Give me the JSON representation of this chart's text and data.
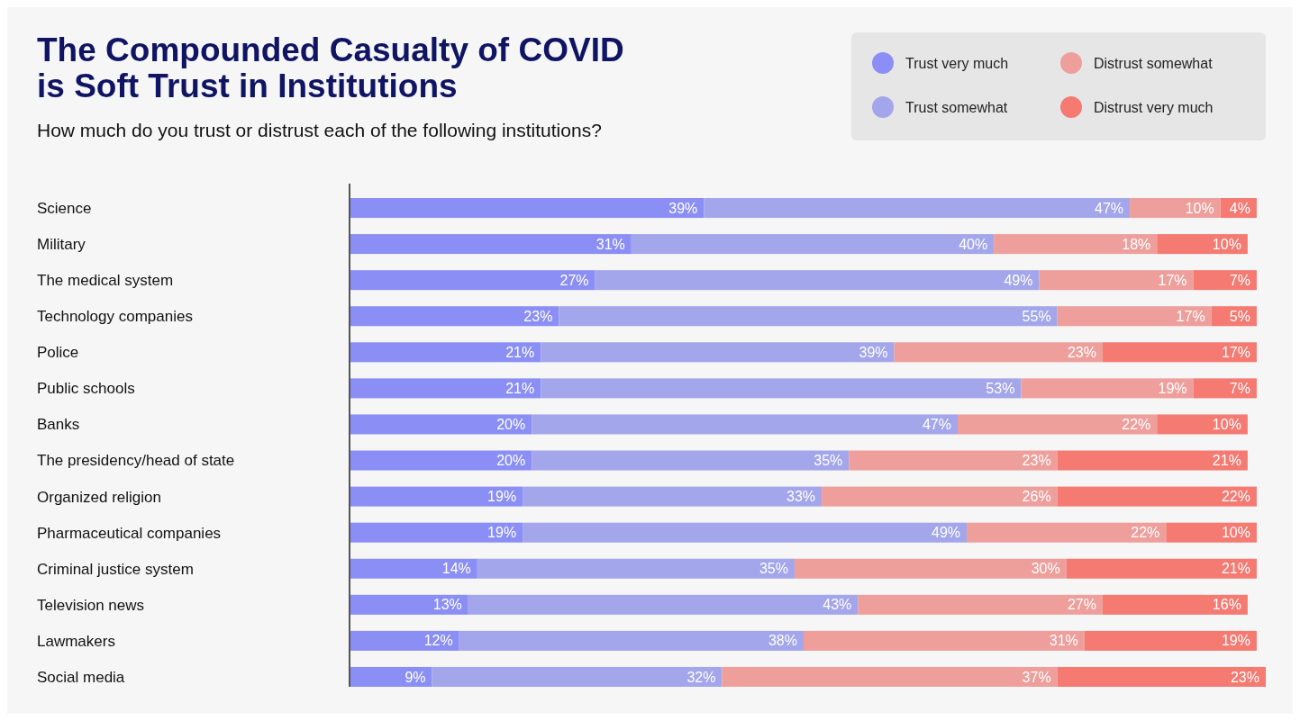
{
  "chart_data": {
    "type": "bar",
    "orientation": "horizontal",
    "stacked": true,
    "title": "The Compounded Casualty of COVID is Soft Trust in Institutions",
    "subtitle": "How much do you trust or distrust each of the following institutions?",
    "legend": "top right",
    "categories": [
      "Science",
      "Military",
      "The medical system",
      "Technology companies",
      "Police",
      "Public schools",
      "Banks",
      "The presidency/head of state",
      "Organized religion",
      "Pharmaceutical companies",
      "Criminal justice system",
      "Television news",
      "Lawmakers",
      "Social media"
    ],
    "series": [
      {
        "name": "Trust very much",
        "color": "#8b8ff5",
        "values": [
          39,
          31,
          27,
          23,
          21,
          21,
          20,
          20,
          19,
          19,
          14,
          13,
          12,
          9
        ],
        "value_labels": [
          "39%",
          "31%",
          "27%",
          "23%",
          "21%",
          "21%",
          "20%",
          "20%",
          "19%",
          "19%",
          "14%",
          "13%",
          "12%",
          "9%"
        ]
      },
      {
        "name": "Trust somewhat",
        "color": "#a3a6ea",
        "values": [
          47,
          40,
          49,
          55,
          39,
          53,
          47,
          35,
          33,
          49,
          35,
          43,
          38,
          32
        ],
        "value_labels": [
          "47%",
          "40%",
          "49%",
          "55%",
          "39%",
          "53%",
          "47%",
          "35%",
          "33%",
          "49%",
          "35%",
          "43%",
          "38%",
          "32%"
        ]
      },
      {
        "name": "Distrust somewhat",
        "color": "#ee9f9c",
        "values": [
          10,
          18,
          17,
          17,
          23,
          19,
          22,
          23,
          26,
          22,
          30,
          27,
          31,
          37
        ],
        "value_labels": [
          "10%",
          "18%",
          "17%",
          "17%",
          "23%",
          "19%",
          "22%",
          "23%",
          "26%",
          "22%",
          "30%",
          "27%",
          "31%",
          "37%"
        ]
      },
      {
        "name": "Distrust very much",
        "color": "#f47a72",
        "values": [
          4,
          10,
          7,
          5,
          17,
          7,
          10,
          21,
          22,
          10,
          21,
          16,
          19,
          23
        ],
        "value_labels": [
          "4%",
          "10%",
          "7%",
          "5%",
          "17%",
          "7%",
          "10%",
          "21%",
          "22%",
          "10%",
          "21%",
          "16%",
          "19%",
          "23%"
        ]
      }
    ]
  }
}
